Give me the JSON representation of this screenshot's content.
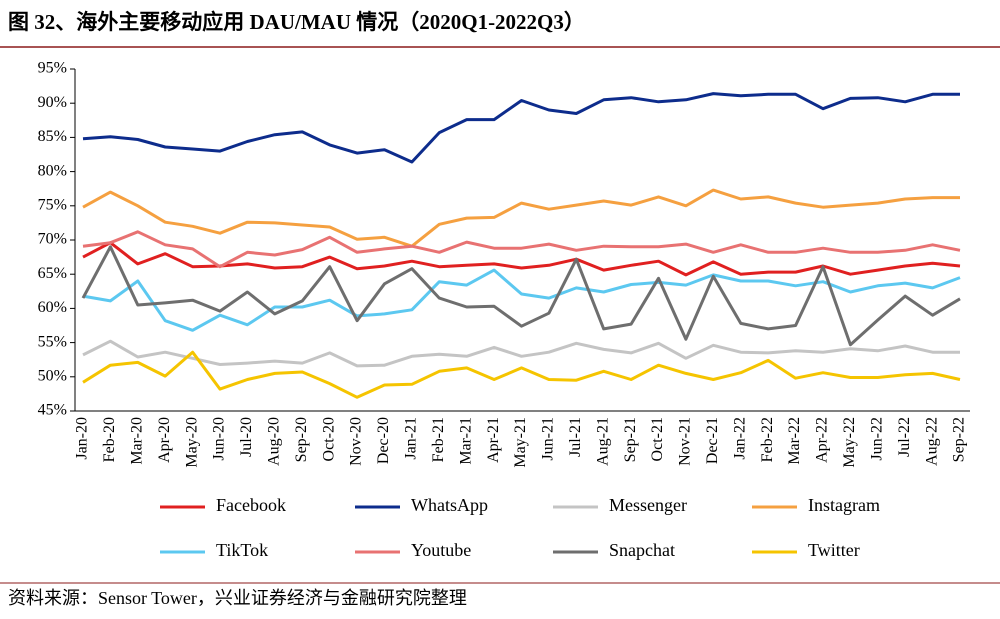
{
  "chart_data": {
    "type": "line",
    "title": "图 32、海外主要移动应用 DAU/MAU 情况（2020Q1-2022Q3）",
    "source": "资料来源：Sensor Tower，兴业证券经济与金融研究院整理",
    "categories": [
      "Jan-20",
      "Feb-20",
      "Mar-20",
      "Apr-20",
      "May-20",
      "Jun-20",
      "Jul-20",
      "Aug-20",
      "Sep-20",
      "Oct-20",
      "Nov-20",
      "Dec-20",
      "Jan-21",
      "Feb-21",
      "Mar-21",
      "Apr-21",
      "May-21",
      "Jun-21",
      "Jul-21",
      "Aug-21",
      "Sep-21",
      "Oct-21",
      "Nov-21",
      "Dec-21",
      "Jan-22",
      "Feb-22",
      "Mar-22",
      "Apr-22",
      "May-22",
      "Jun-22",
      "Jul-22",
      "Aug-22",
      "Sep-22"
    ],
    "ylim": [
      45,
      95
    ],
    "yticks": [
      {
        "value": 45,
        "label": "45%"
      },
      {
        "value": 50,
        "label": "50%"
      },
      {
        "value": 55,
        "label": "55%"
      },
      {
        "value": 60,
        "label": "60%"
      },
      {
        "value": 65,
        "label": "65%"
      },
      {
        "value": 70,
        "label": "70%"
      },
      {
        "value": 75,
        "label": "75%"
      },
      {
        "value": 80,
        "label": "80%"
      },
      {
        "value": 85,
        "label": "85%"
      },
      {
        "value": 90,
        "label": "90%"
      },
      {
        "value": 95,
        "label": "95%"
      }
    ],
    "grid": false,
    "legend": "bottom",
    "series": [
      {
        "name": "Facebook",
        "color": "#e02020",
        "values": [
          67.5,
          69.6,
          66.5,
          68.0,
          66.1,
          66.2,
          66.5,
          65.9,
          66.1,
          67.5,
          65.8,
          66.2,
          66.9,
          66.1,
          66.3,
          66.5,
          65.9,
          66.3,
          67.2,
          65.6,
          66.3,
          66.9,
          64.9,
          66.8,
          65.0,
          65.3,
          65.3,
          66.2,
          65.0,
          65.6,
          66.2,
          66.6,
          66.2
        ]
      },
      {
        "name": "WhatsApp",
        "color": "#0d2c8c",
        "values": [
          84.8,
          85.1,
          84.7,
          83.6,
          83.3,
          83.0,
          84.4,
          85.4,
          85.8,
          83.9,
          82.7,
          83.2,
          81.4,
          85.7,
          87.6,
          87.6,
          90.4,
          89.0,
          88.5,
          90.5,
          90.8,
          90.2,
          90.5,
          91.4,
          91.1,
          91.3,
          91.3,
          89.2,
          90.7,
          90.8,
          90.2,
          91.3,
          91.3
        ]
      },
      {
        "name": "Messenger",
        "color": "#c4c4c4",
        "values": [
          53.2,
          55.2,
          52.9,
          53.6,
          52.7,
          51.8,
          52.0,
          52.3,
          52.0,
          53.5,
          51.6,
          51.7,
          53.0,
          53.3,
          53.0,
          54.3,
          53.0,
          53.6,
          54.9,
          54.0,
          53.5,
          54.9,
          52.7,
          54.6,
          53.6,
          53.5,
          53.8,
          53.6,
          54.1,
          53.8,
          54.5,
          53.6,
          53.6
        ]
      },
      {
        "name": "Instagram",
        "color": "#f5a040",
        "values": [
          74.8,
          77.0,
          75.0,
          72.6,
          72.0,
          71.0,
          72.6,
          72.5,
          72.2,
          71.9,
          70.1,
          70.4,
          69.1,
          72.3,
          73.2,
          73.3,
          75.4,
          74.5,
          75.1,
          75.7,
          75.1,
          76.3,
          75.0,
          77.3,
          76.0,
          76.3,
          75.4,
          74.8,
          75.1,
          75.4,
          76.0,
          76.2,
          76.2
        ]
      },
      {
        "name": "TikTok",
        "color": "#5cc8f0",
        "values": [
          61.8,
          61.1,
          64.0,
          58.2,
          56.8,
          59.0,
          57.6,
          60.2,
          60.2,
          61.2,
          58.9,
          59.2,
          59.8,
          63.9,
          63.4,
          65.6,
          62.1,
          61.5,
          63.0,
          62.4,
          63.5,
          63.8,
          63.4,
          64.9,
          64.0,
          64.0,
          63.3,
          63.9,
          62.4,
          63.3,
          63.7,
          63.0,
          64.5
        ]
      },
      {
        "name": "Youtube",
        "color": "#e87272",
        "values": [
          69.1,
          69.6,
          71.2,
          69.3,
          68.7,
          66.1,
          68.2,
          67.8,
          68.6,
          70.4,
          68.2,
          68.7,
          69.1,
          68.2,
          69.7,
          68.8,
          68.8,
          69.4,
          68.5,
          69.1,
          69.0,
          69.0,
          69.4,
          68.2,
          69.3,
          68.2,
          68.2,
          68.8,
          68.2,
          68.2,
          68.5,
          69.3,
          68.5
        ]
      },
      {
        "name": "Snapchat",
        "color": "#6e6e6e",
        "values": [
          61.5,
          69.0,
          60.5,
          60.8,
          61.2,
          59.6,
          62.4,
          59.2,
          61.1,
          66.1,
          58.2,
          63.6,
          65.8,
          61.5,
          60.2,
          60.3,
          57.4,
          59.3,
          67.2,
          57.0,
          57.7,
          64.4,
          55.5,
          64.7,
          57.8,
          57.0,
          57.5,
          66.1,
          54.7,
          58.3,
          61.8,
          59.0,
          61.4
        ]
      },
      {
        "name": "Twitter",
        "color": "#f5c400",
        "values": [
          49.2,
          51.7,
          52.1,
          50.1,
          53.6,
          48.2,
          49.6,
          50.5,
          50.7,
          49.0,
          47.0,
          48.8,
          48.9,
          50.8,
          51.3,
          49.6,
          51.3,
          49.6,
          49.5,
          50.8,
          49.6,
          51.7,
          50.5,
          49.6,
          50.6,
          52.4,
          49.8,
          50.6,
          49.9,
          49.9,
          50.3,
          50.5,
          49.6
        ]
      }
    ]
  }
}
